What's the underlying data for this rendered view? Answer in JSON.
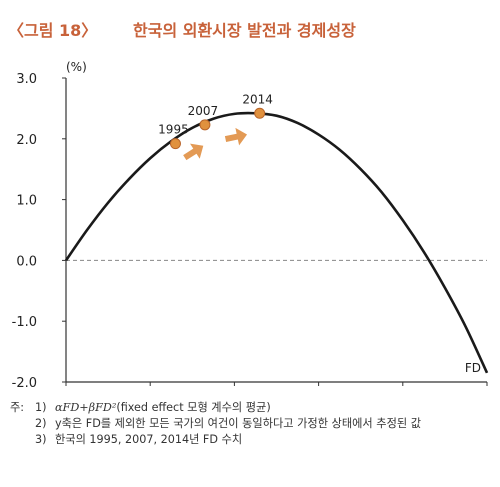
{
  "header": {
    "figure_label": "〈그림 18〉",
    "title": "한국의 외환시장 발전과 경제성장"
  },
  "colors": {
    "accent": "#c8623a",
    "curve": "#1a1a1a",
    "marker": "#e0913e",
    "arrow": "#e39a55",
    "zero_line": "#888888"
  },
  "chart_data": {
    "type": "line",
    "unit_label": "(%)",
    "xlabel": "FD",
    "ylabel": "",
    "xlim": [
      0,
      1
    ],
    "ylim": [
      -2.0,
      3.0
    ],
    "x_ticks": [
      "0",
      "0.2",
      "0.4",
      "0.6",
      "0.8",
      "1"
    ],
    "y_ticks": [
      "3.0",
      "2.0",
      "1.0",
      "0.0",
      "-1.0",
      "-2.0"
    ],
    "x_tick_values": [
      0,
      0.2,
      0.4,
      0.6,
      0.8,
      1.0
    ],
    "y_tick_values": [
      3.0,
      2.0,
      1.0,
      0.0,
      -1.0,
      -2.0
    ],
    "series": [
      {
        "x": [
          0,
          0.05,
          0.1,
          0.15,
          0.2,
          0.25,
          0.3,
          0.35,
          0.4,
          0.45,
          0.5,
          0.55,
          0.6,
          0.65,
          0.7,
          0.75,
          0.8,
          0.85,
          0.9,
          0.95,
          1.0
        ],
        "values": [
          0.0,
          0.5,
          0.95,
          1.34,
          1.68,
          1.96,
          2.18,
          2.33,
          2.41,
          2.42,
          2.38,
          2.26,
          2.07,
          1.82,
          1.5,
          1.12,
          0.66,
          0.14,
          -0.45,
          -1.1,
          -1.85
        ]
      }
    ],
    "points": [
      {
        "label": "1995",
        "x": 0.26,
        "y": 1.92
      },
      {
        "label": "2007",
        "x": 0.33,
        "y": 2.23
      },
      {
        "label": "2014",
        "x": 0.46,
        "y": 2.42
      }
    ],
    "zero_line": "dashed",
    "grid": false
  },
  "notes": {
    "prefix": "주:",
    "items": [
      {
        "num": "1)",
        "formula": "αFD+βFD²",
        "text": "(fixed effect 모형 계수의 평균)"
      },
      {
        "num": "2)",
        "formula": "",
        "text": "y축은 FD를 제외한 모든 국가의 여건이 동일하다고 가정한 상태에서 추정된 값"
      },
      {
        "num": "3)",
        "formula": "",
        "text": "한국의 1995, 2007, 2014년 FD 수치"
      }
    ]
  }
}
